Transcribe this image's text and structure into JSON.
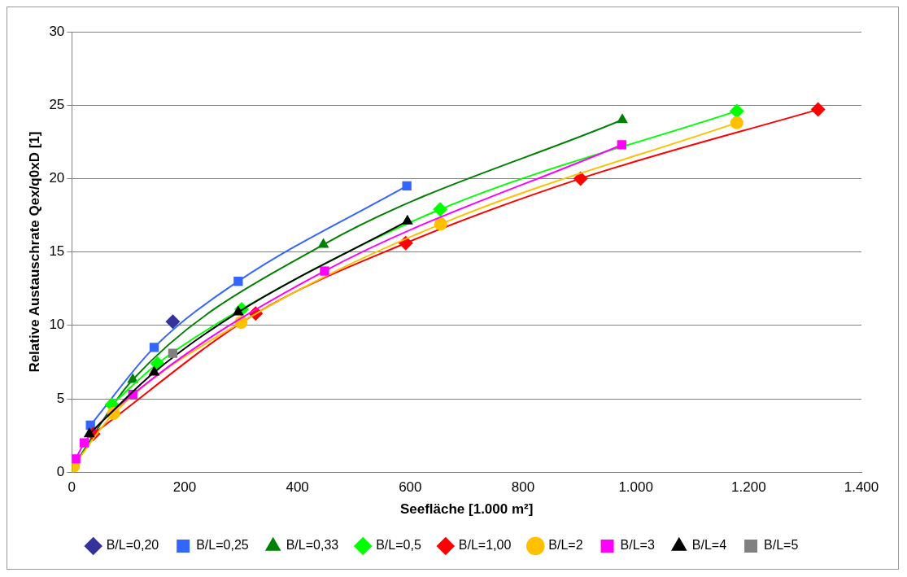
{
  "chart_data": {
    "type": "line",
    "xlabel": "Seefläche [1.000 m²]",
    "ylabel": "Relative Austauschrate Qex/q0xD [1]",
    "xlim": [
      0,
      1400
    ],
    "xticks": [
      0,
      200,
      400,
      600,
      800,
      {
        "value": 1000,
        "label": "1.000"
      },
      {
        "value": 1200,
        "label": "1.200"
      },
      {
        "value": 1400,
        "label": "1.400"
      }
    ],
    "ylim": [
      0,
      30
    ],
    "yticks": [
      0,
      5,
      10,
      15,
      20,
      25,
      30
    ],
    "grid": "y",
    "legend": "bottom",
    "series": [
      {
        "name": "B/L=0,20",
        "color": "#333399",
        "marker": "diamond",
        "x": [
          179
        ],
        "values": [
          10.25
        ]
      },
      {
        "name": "B/L=0,25",
        "color": "#3366ff",
        "marker": "square",
        "x": [
          33,
          146,
          295,
          594
        ],
        "values": [
          3.2,
          8.5,
          13,
          19.5
        ]
      },
      {
        "name": "B/L=0,33",
        "color": "#008000",
        "marker": "triangle",
        "x": [
          1,
          108,
          446,
          976
        ],
        "values": [
          0.3,
          6.3,
          15.5,
          24
        ]
      },
      {
        "name": "B/L=0,5",
        "color": "#00ff00",
        "marker": "diamond",
        "x": [
          71,
          152,
          301,
          653,
          1179
        ],
        "values": [
          4.6,
          7.4,
          11.1,
          17.9,
          24.6
        ]
      },
      {
        "name": "B/L=1,00",
        "color": "#ff0000",
        "marker": "diamond",
        "x": [
          38,
          326,
          592,
          902,
          1323
        ],
        "values": [
          2.6,
          10.8,
          15.6,
          20,
          24.7
        ]
      },
      {
        "name": "B/L=2",
        "color": "#ffc000",
        "marker": "circle",
        "x": [
          3,
          74,
          300,
          654,
          1179
        ],
        "values": [
          0.4,
          4,
          10.2,
          16.9,
          23.8
        ]
      },
      {
        "name": "B/L=3",
        "color": "#ff00ff",
        "marker": "square",
        "x": [
          7,
          22,
          108,
          448,
          975
        ],
        "values": [
          0.9,
          2,
          5.3,
          13.7,
          22.3
        ]
      },
      {
        "name": "B/L=4",
        "color": "#000000",
        "marker": "triangle",
        "x": [
          31,
          146,
          295,
          595
        ],
        "values": [
          2.6,
          6.8,
          10.9,
          17.1
        ]
      },
      {
        "name": "B/L=5",
        "color": "#808080",
        "marker": "square",
        "x": [
          179
        ],
        "values": [
          8.1
        ]
      }
    ]
  }
}
